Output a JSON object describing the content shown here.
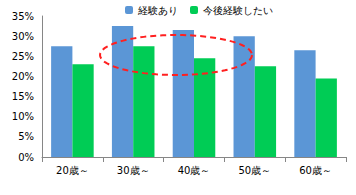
{
  "chart_data": {
    "type": "bar",
    "categories": [
      "20歳～",
      "30歳～",
      "40歳～",
      "50歳～",
      "60歳～"
    ],
    "series": [
      {
        "name": "経験あり",
        "color": "#5B96D6",
        "values": [
          27.5,
          32.5,
          31.5,
          30,
          26.5
        ]
      },
      {
        "name": "今後経験したい",
        "color": "#00CC55",
        "values": [
          23,
          27.5,
          24.5,
          22.5,
          19.5
        ]
      }
    ],
    "ylim": [
      0,
      35
    ],
    "yticks": [
      {
        "value": 0,
        "label": "0%"
      },
      {
        "value": 5,
        "label": "5%"
      },
      {
        "value": 10,
        "label": "10%"
      },
      {
        "value": 15,
        "label": "15%"
      },
      {
        "value": 20,
        "label": "20%"
      },
      {
        "value": 25,
        "label": "25%"
      },
      {
        "value": 30,
        "label": "30%"
      },
      {
        "value": 35,
        "label": "35%"
      }
    ],
    "grid": false,
    "legend": "top"
  }
}
